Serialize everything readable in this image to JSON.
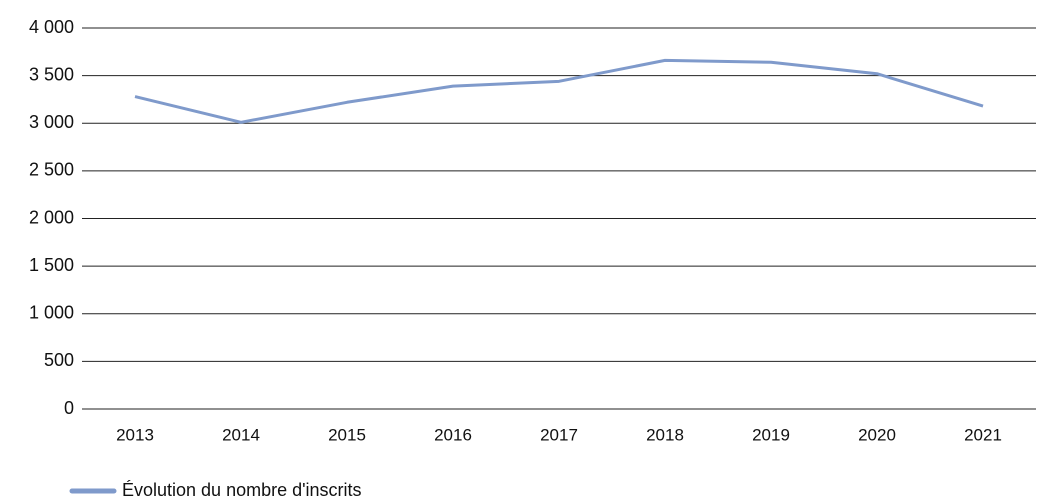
{
  "chart_data": {
    "type": "line",
    "categories": [
      "2013",
      "2014",
      "2015",
      "2016",
      "2017",
      "2018",
      "2019",
      "2020",
      "2021"
    ],
    "series": [
      {
        "name": "Évolution du nombre d'inscrits",
        "color": "#7f9acb",
        "values": [
          3280,
          3010,
          3220,
          3390,
          3440,
          3660,
          3640,
          3520,
          3180
        ]
      }
    ],
    "ylim": [
      0,
      4000
    ],
    "yticks": [
      0,
      500,
      {
        "value": 1000,
        "label": "1 000"
      },
      {
        "value": 1500,
        "label": "1 500"
      },
      {
        "value": 2000,
        "label": "2 000"
      },
      {
        "value": 2500,
        "label": "2 500"
      },
      {
        "value": 3000,
        "label": "3 000"
      },
      {
        "value": 3500,
        "label": "3 500"
      },
      {
        "value": 4000,
        "label": "4 000"
      }
    ],
    "grid": true,
    "legend": "bottom-left"
  }
}
